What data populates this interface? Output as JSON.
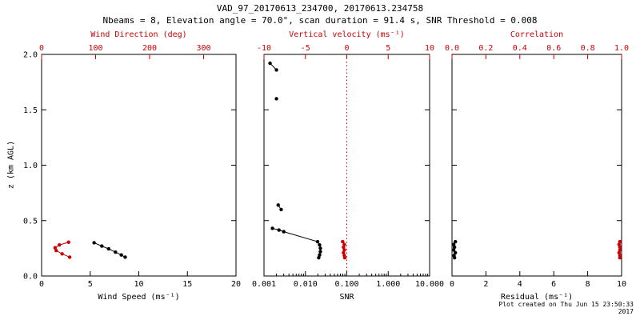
{
  "title": "VAD_97_20170613_234700, 20170613.234758",
  "subtitle": "Nbeams = 8, Elevation angle = 70.0°, scan duration = 91.4 s, SNR Threshold = 0.008",
  "footer": "Plot created on Thu Jun 15 23:50:33 2017",
  "ylabel": "z (km AGL)",
  "colors": {
    "red": "#cc0000",
    "black": "#000000"
  },
  "chart_data": [
    {
      "type": "scatter",
      "xlabel": "Wind Speed (ms⁻¹)",
      "top_xlabel": "Wind Direction (deg)",
      "xlim": [
        0,
        20
      ],
      "xticks": [
        0,
        5,
        10,
        15,
        20
      ],
      "xtick_labels": [
        "0",
        "5",
        "10",
        "15",
        "20"
      ],
      "top_xlim": [
        0,
        360
      ],
      "top_xticks": [
        0,
        100,
        200,
        300
      ],
      "top_xtick_labels": [
        "0",
        "100",
        "200",
        "300"
      ],
      "ylim": [
        0,
        2
      ],
      "yticks": [
        0,
        0.5,
        1,
        1.5,
        2
      ],
      "ytick_labels": [
        "0.0",
        "0.5",
        "1.0",
        "1.5",
        "2.0"
      ],
      "series": [
        {
          "name": "wind_speed",
          "axis": "bottom",
          "color": "black",
          "segments": [
            [
              [
                5.4,
                0.3
              ],
              [
                6.2,
                0.27
              ],
              [
                6.9,
                0.245
              ],
              [
                7.6,
                0.215
              ],
              [
                8.2,
                0.19
              ],
              [
                8.6,
                0.17
              ]
            ]
          ]
        },
        {
          "name": "wind_direction",
          "axis": "top",
          "color": "red",
          "segments": [
            [
              [
                50,
                0.305
              ],
              [
                33,
                0.28
              ],
              [
                25,
                0.255
              ],
              [
                27,
                0.23
              ],
              [
                38,
                0.2
              ],
              [
                52,
                0.17
              ]
            ]
          ]
        }
      ]
    },
    {
      "type": "scatter",
      "xlabel": "SNR",
      "top_xlabel": "Vertical velocity (ms⁻¹)",
      "xscale": "log",
      "xlim": [
        0.001,
        10
      ],
      "xticks": [
        0.001,
        0.01,
        0.1,
        1,
        10
      ],
      "xtick_labels": [
        "0.001",
        "0.010",
        "0.100",
        "1.000",
        "10.000"
      ],
      "top_xlim": [
        -10,
        10
      ],
      "top_xticks": [
        -10,
        -5,
        0,
        5,
        10
      ],
      "top_xtick_labels": [
        "-10",
        "-5",
        "0",
        "5",
        "10"
      ],
      "ylim": [
        0,
        2
      ],
      "yticks": [
        0,
        0.5,
        1,
        1.5,
        2
      ],
      "refline": {
        "axis": "top",
        "x": 0,
        "color": "red",
        "style": "dotted"
      },
      "series": [
        {
          "name": "snr",
          "axis": "bottom",
          "color": "black",
          "segments": [
            [
              [
                0.0014,
                1.92
              ],
              [
                0.002,
                1.86
              ]
            ],
            [
              [
                0.002,
                1.6
              ]
            ],
            [
              [
                0.0022,
                0.64
              ],
              [
                0.0026,
                0.6
              ]
            ],
            [
              [
                0.0016,
                0.43
              ],
              [
                0.0023,
                0.415
              ],
              [
                0.003,
                0.4
              ],
              [
                0.0197,
                0.31
              ],
              [
                0.022,
                0.28
              ],
              [
                0.023,
                0.25
              ],
              [
                0.023,
                0.22
              ],
              [
                0.022,
                0.19
              ],
              [
                0.021,
                0.165
              ]
            ]
          ]
        },
        {
          "name": "vertical_velocity",
          "axis": "top",
          "color": "red",
          "segments": [
            [
              [
                -0.5,
                0.31
              ],
              [
                -0.3,
                0.285
              ],
              [
                -0.4,
                0.26
              ],
              [
                -0.3,
                0.235
              ],
              [
                -0.4,
                0.21
              ],
              [
                -0.3,
                0.185
              ],
              [
                -0.25,
                0.165
              ]
            ]
          ]
        }
      ]
    },
    {
      "type": "scatter",
      "xlabel": "Residual (ms⁻¹)",
      "top_xlabel": "Correlation",
      "xlim": [
        0,
        10
      ],
      "xticks": [
        0,
        2,
        4,
        6,
        8,
        10
      ],
      "xtick_labels": [
        "0",
        "2",
        "4",
        "6",
        "8",
        "10"
      ],
      "top_xlim": [
        0,
        1
      ],
      "top_xticks": [
        0,
        0.2,
        0.4,
        0.6,
        0.8,
        1
      ],
      "top_xtick_labels": [
        "0.0",
        "0.2",
        "0.4",
        "0.6",
        "0.8",
        "1.0"
      ],
      "ylim": [
        0,
        2
      ],
      "yticks": [
        0,
        0.5,
        1,
        1.5,
        2
      ],
      "series": [
        {
          "name": "residual",
          "axis": "bottom",
          "color": "black",
          "segments": [
            [
              [
                0.2,
                0.31
              ],
              [
                0.1,
                0.285
              ],
              [
                0.15,
                0.26
              ],
              [
                0.1,
                0.235
              ],
              [
                0.2,
                0.21
              ],
              [
                0.12,
                0.185
              ],
              [
                0.15,
                0.165
              ]
            ]
          ]
        },
        {
          "name": "correlation",
          "axis": "top",
          "color": "red",
          "segments": [
            [
              [
                0.99,
                0.31
              ],
              [
                0.985,
                0.285
              ],
              [
                0.99,
                0.26
              ],
              [
                0.99,
                0.235
              ],
              [
                0.985,
                0.21
              ],
              [
                0.99,
                0.185
              ],
              [
                0.99,
                0.165
              ]
            ]
          ]
        }
      ]
    }
  ]
}
